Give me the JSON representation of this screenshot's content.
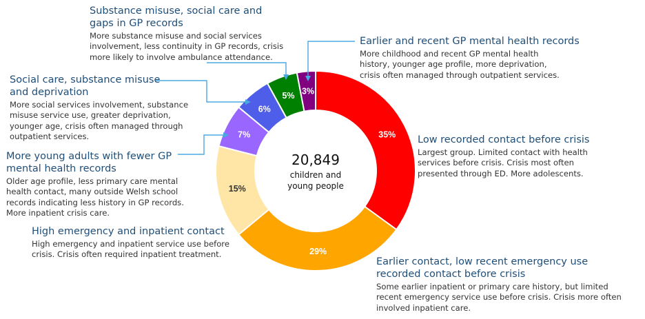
{
  "chart_data": {
    "type": "pie",
    "center": {
      "value": "20,849",
      "label_line1": "children and",
      "label_line2": "young people"
    },
    "slices": [
      {
        "label": "Low recorded contact before crisis",
        "value": 35,
        "display": "35%",
        "color": "#ff0000",
        "description": "Largest group. Limited contact with health services before crisis. Crisis most often presented through ED. More adolescents."
      },
      {
        "label": "Earlier contact, low recent emergency use recorded contact before crisis",
        "value": 29,
        "display": "29%",
        "color": "#ffa500",
        "description": "Some earlier inpatient or primary care history, but limited recent emergency service use before crisis. Crisis more often involved inpatient care."
      },
      {
        "label": "High emergency and inpatient contact",
        "value": 15,
        "display": "15%",
        "color": "#ffe6a6",
        "description": "High emergency and inpatient service use before crisis. Crisis often required inpatient treatment."
      },
      {
        "label": "More young adults with fewer GP mental health records",
        "value": 7,
        "display": "7%",
        "color": "#9966ff",
        "description": "Older age profile, less primary care mental health contact, many outside Welsh school records indicating less history in GP records. More inpatient crisis care."
      },
      {
        "label": "Social care, substance misuse and deprivation",
        "value": 6,
        "display": "6%",
        "color": "#4f5ee8",
        "description": "More social services involvement, substance misuse service use, greater deprivation, younger age, crisis often managed through outpatient services."
      },
      {
        "label": "Substance misuse, social care and gaps in GP records",
        "value": 5,
        "display": "5%",
        "color": "#008000",
        "description": "More substance misuse and social services involvement, less continuity in GP records, crisis more likely to involve ambulance attendance."
      },
      {
        "label": "Earlier and recent GP mental health records",
        "value": 3,
        "display": "3%",
        "color": "#800080",
        "description": "More childhood and recent GP mental health history, younger age profile, more deprivation, crisis often managed through outpatient services."
      }
    ]
  },
  "annotations": {
    "substance_social": {
      "title_line1": "Substance misuse, social care and",
      "title_line2": "gaps in GP records",
      "desc_line1": "More substance misuse and social services",
      "desc_line2": "involvement, less continuity in GP records, crisis",
      "desc_line3": "more likely to involve ambulance attendance."
    },
    "earlier_recent_gp": {
      "title_line1": "Earlier and recent GP mental health records",
      "desc_line1": "More childhood and recent GP mental health",
      "desc_line2": "history, younger age profile, more deprivation,",
      "desc_line3": "crisis often managed through outpatient services."
    },
    "social_care": {
      "title_line1": "Social care, substance misuse",
      "title_line2": "and deprivation",
      "desc_line1": "More social services involvement, substance",
      "desc_line2": "misuse service use, greater deprivation,",
      "desc_line3": "younger age, crisis often managed through",
      "desc_line4": "outpatient services."
    },
    "low_recorded": {
      "title_line1": "Low recorded contact before crisis",
      "desc_line1": "Largest group. Limited contact with health",
      "desc_line2": "services before crisis. Crisis most often",
      "desc_line3": "presented through ED. More adolescents."
    },
    "young_adults": {
      "title_line1": "More young adults with fewer GP",
      "title_line2": "mental health records",
      "desc_line1": "Older age profile, less primary care mental",
      "desc_line2": "health contact, many outside Welsh school",
      "desc_line3": "records indicating less history in GP records.",
      "desc_line4": "More inpatient crisis care."
    },
    "high_emergency": {
      "title_line1": "High emergency and inpatient contact",
      "desc_line1": "High emergency and inpatient service use before",
      "desc_line2": "crisis. Crisis often required inpatient treatment."
    },
    "earlier_contact": {
      "title_line1": "Earlier contact, low recent emergency use",
      "title_line2": "recorded contact before crisis",
      "desc_line1": "Some earlier inpatient or primary care history, but limited",
      "desc_line2": "recent emergency service use before crisis. Crisis more often",
      "desc_line3": "involved inpatient care."
    }
  },
  "colors": {
    "title": "#1f4e79",
    "leader": "#4aa8e0",
    "text": "#333333"
  }
}
